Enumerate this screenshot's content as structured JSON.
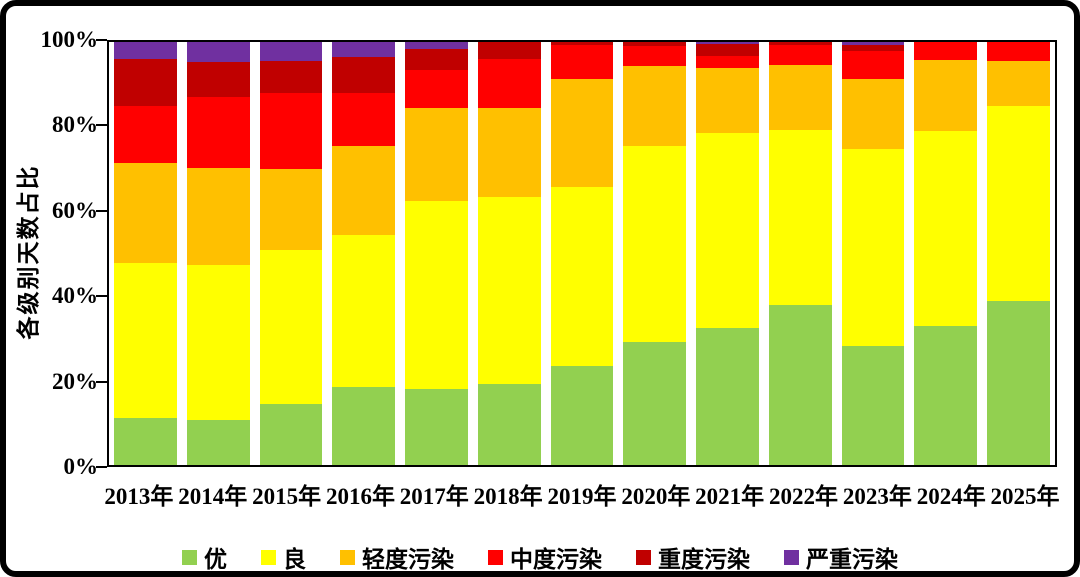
{
  "y_axis": {
    "title": "各级别天数占比",
    "ticks": [
      "0%",
      "20%",
      "40%",
      "60%",
      "80%",
      "100%"
    ]
  },
  "chart_data": {
    "type": "bar",
    "stacked": true,
    "unit": "percent",
    "title": "",
    "xlabel": "",
    "ylabel": "各级别天数占比",
    "ylim": [
      0,
      100
    ],
    "grid": false,
    "legend_position": "bottom",
    "categories": [
      "2013年",
      "2014年",
      "2015年",
      "2016年",
      "2017年",
      "2018年",
      "2019年",
      "2020年",
      "2021年",
      "2022年",
      "2023年",
      "2024年",
      "2025年"
    ],
    "series": [
      {
        "name": "优",
        "color": "#92D050",
        "values": [
          11.2,
          10.6,
          14.5,
          18.4,
          18.0,
          19.2,
          23.5,
          29.0,
          32.4,
          37.9,
          28.2,
          32.9,
          38.7
        ]
      },
      {
        "name": "良",
        "color": "#FFFF00",
        "values": [
          36.5,
          36.7,
          36.3,
          35.9,
          44.5,
          44.1,
          42.2,
          46.4,
          46.1,
          41.4,
          46.4,
          46.0,
          46.2
        ]
      },
      {
        "name": "轻度污染",
        "color": "#FFC000",
        "values": [
          23.6,
          23.0,
          19.1,
          21.1,
          21.9,
          21.1,
          25.5,
          18.9,
          15.4,
          15.2,
          16.6,
          16.9,
          10.6
        ]
      },
      {
        "name": "中度污染",
        "color": "#FF0000",
        "values": [
          13.5,
          16.8,
          18.0,
          12.5,
          8.9,
          11.5,
          8.0,
          4.7,
          2.8,
          4.9,
          6.6,
          4.2,
          4.5
        ]
      },
      {
        "name": "重度污染",
        "color": "#C00000",
        "values": [
          11.3,
          8.2,
          7.7,
          8.6,
          5.1,
          4.1,
          0.8,
          1.0,
          2.8,
          0.6,
          1.6,
          0.0,
          0.0
        ]
      },
      {
        "name": "严重污染",
        "color": "#7030A0",
        "values": [
          3.9,
          4.7,
          4.4,
          3.5,
          1.6,
          0.0,
          0.0,
          0.0,
          0.5,
          0.0,
          0.6,
          0.0,
          0.0
        ]
      }
    ]
  },
  "colors": {
    "axis": "#000000",
    "background": "#FFFFFF",
    "frame": "#000000"
  }
}
